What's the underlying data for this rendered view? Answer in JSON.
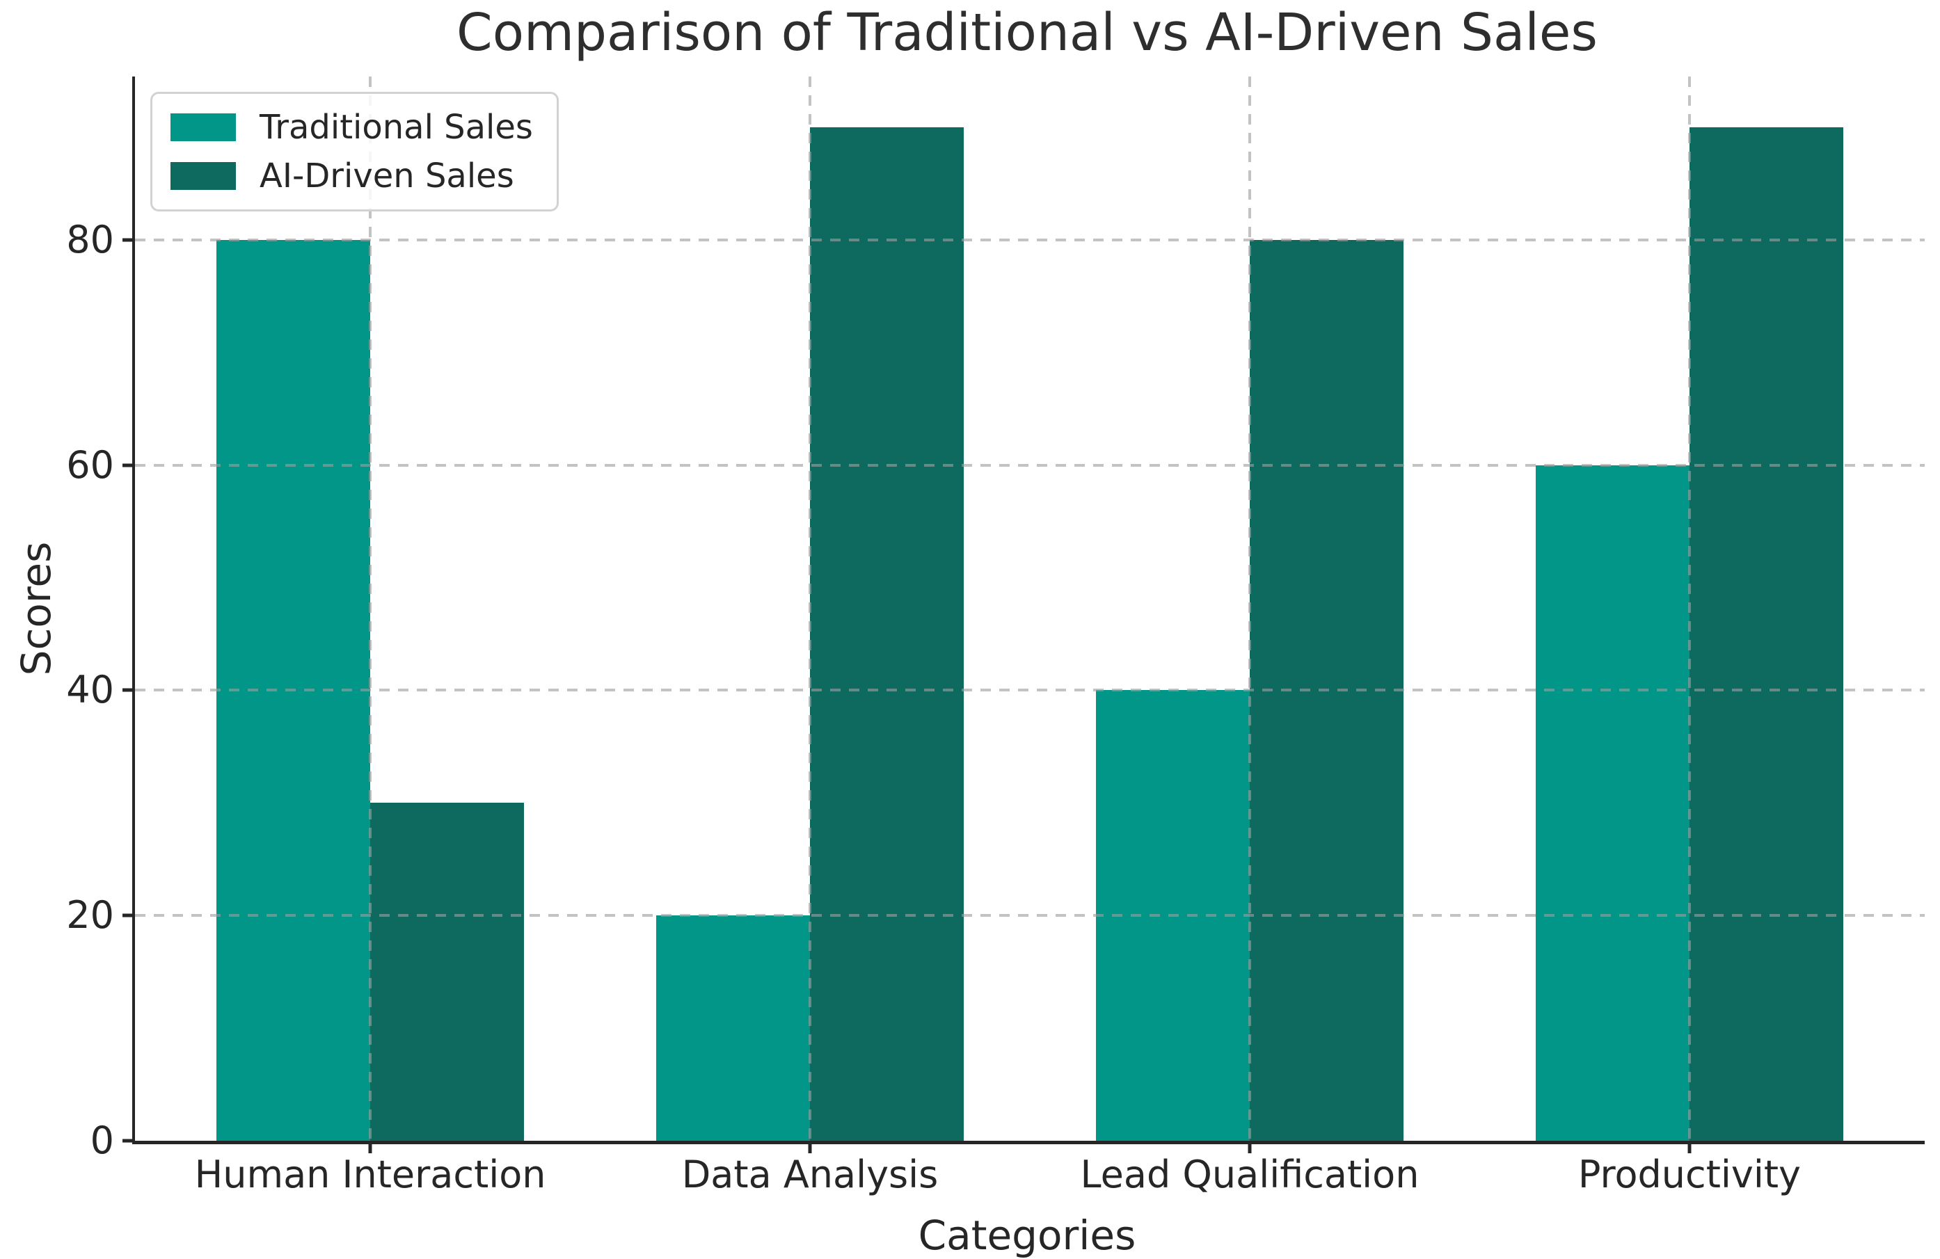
{
  "chart_data": {
    "type": "bar",
    "title": "Comparison of Traditional vs AI-Driven Sales",
    "xlabel": "Categories",
    "ylabel": "Scores",
    "categories": [
      "Human Interaction",
      "Data Analysis",
      "Lead Qualification",
      "Productivity"
    ],
    "series": [
      {
        "name": "Traditional Sales",
        "color": "#019688",
        "values": [
          80,
          20,
          40,
          60
        ]
      },
      {
        "name": "AI-Driven Sales",
        "color": "#0e695e",
        "values": [
          30,
          90,
          80,
          90
        ]
      }
    ],
    "yticks": [
      0,
      20,
      40,
      60,
      80
    ],
    "ylim": [
      0,
      94.5
    ],
    "bar_width_units": 0.35,
    "x_span_units": 4.07,
    "x_pad_units": 0.535,
    "grid": true,
    "grid_style": "dashed",
    "legend_position": "upper left",
    "colors": {
      "axis": "#262626",
      "grid": "#9e9e9e",
      "title_text": "#2e2e2e",
      "background": "#ffffff"
    }
  }
}
